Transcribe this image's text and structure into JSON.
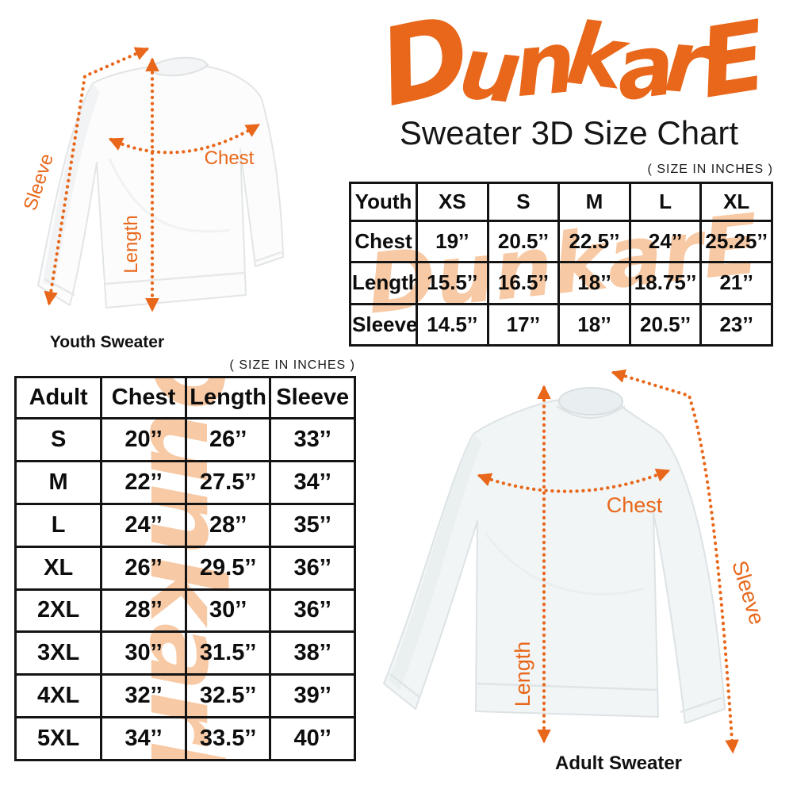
{
  "brand": {
    "logo_text": "DunkarE",
    "subtitle": "Sweater 3D Size Chart"
  },
  "size_note": "( SIZE IN INCHES )",
  "watermark_text": "DunkarE",
  "colors": {
    "accent_orange": "#E8671A",
    "watermark_peach": "#F7C9A4",
    "table_border_black": "#141414"
  },
  "youth_diagram": {
    "caption": "Youth Sweater",
    "chest_label": "Chest",
    "length_label": "Length",
    "sleeve_label": "Sleeve"
  },
  "adult_diagram": {
    "caption": "Adult Sweater",
    "chest_label": "Chest",
    "length_label": "Length",
    "sleeve_label": "Sleeve"
  },
  "chart_data": [
    {
      "type": "table",
      "title": "Youth Sweater Size Chart ( size in inches )",
      "columns": [
        "Youth",
        "XS",
        "S",
        "M",
        "L",
        "XL"
      ],
      "rows": [
        [
          "Chest",
          "19’’",
          "20.5’’",
          "22.5’’",
          "24’’",
          "25.25’’"
        ],
        [
          "Length",
          "15.5’’",
          "16.5’’",
          "18’’",
          "18.75’’",
          "21’’"
        ],
        [
          "Sleeve",
          "14.5’’",
          "17’’",
          "18’’",
          "20.5’’",
          "23’’"
        ]
      ]
    },
    {
      "type": "table",
      "title": "Adult Sweater Size Chart ( size in inches )",
      "columns": [
        "Adult",
        "Chest",
        "Length",
        "Sleeve"
      ],
      "rows": [
        [
          "S",
          "20’’",
          "26’’",
          "33’’"
        ],
        [
          "M",
          "22’’",
          "27.5’’",
          "34’’"
        ],
        [
          "L",
          "24’’",
          "28’’",
          "35’’"
        ],
        [
          "XL",
          "26’’",
          "29.5’’",
          "36’’"
        ],
        [
          "2XL",
          "28’’",
          "30’’",
          "36’’"
        ],
        [
          "3XL",
          "30’’",
          "31.5’’",
          "38’’"
        ],
        [
          "4XL",
          "32’’",
          "32.5’’",
          "39’’"
        ],
        [
          "5XL",
          "34’’",
          "33.5’’",
          "40’’"
        ]
      ]
    }
  ]
}
